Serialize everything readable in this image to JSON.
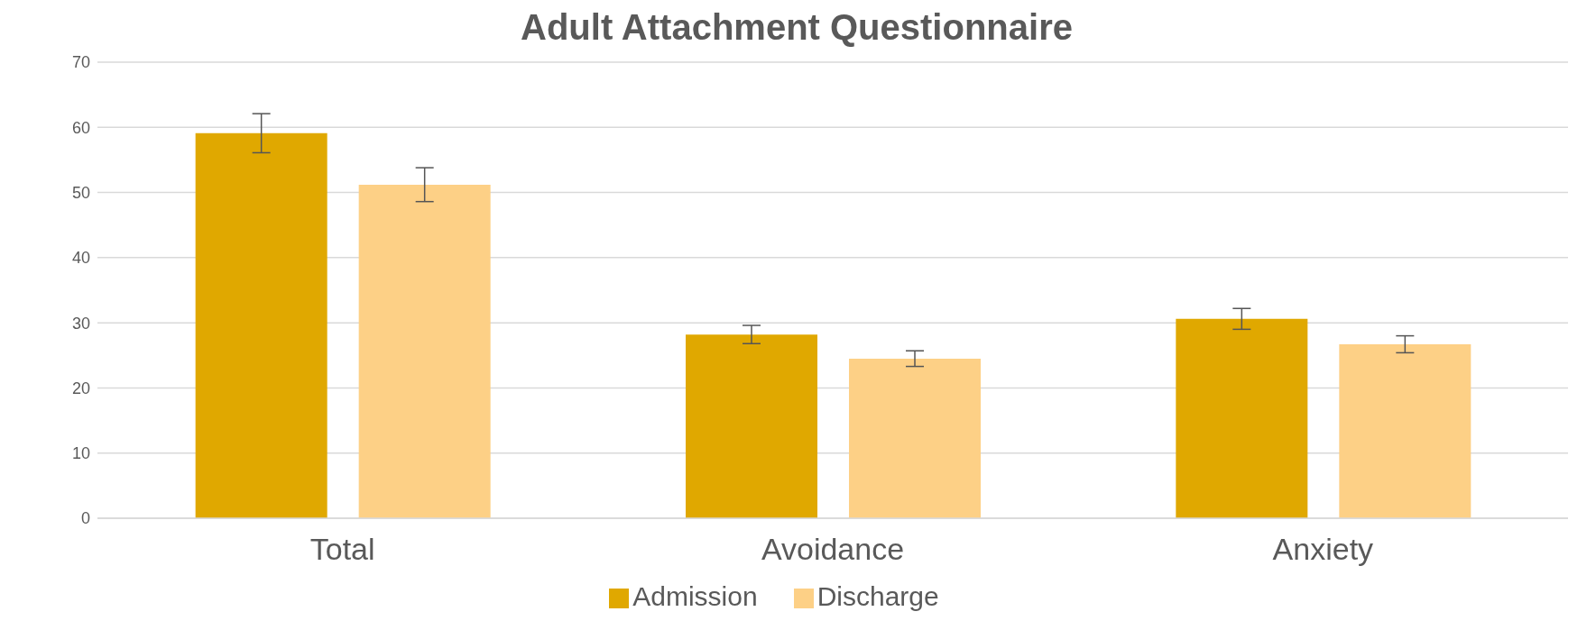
{
  "chart_data": {
    "type": "bar",
    "title": "Adult Attachment Questionnaire",
    "categories": [
      "Total",
      "Avoidance",
      "Anxiety"
    ],
    "series": [
      {
        "name": "Admission",
        "color": "#e0a800",
        "values": [
          59.1,
          28.2,
          30.6
        ],
        "errors": [
          3,
          1.4,
          1.6
        ]
      },
      {
        "name": "Discharge",
        "color": "#fdd086",
        "values": [
          51.2,
          24.5,
          26.7
        ],
        "errors": [
          2.6,
          1.2,
          1.3
        ]
      }
    ],
    "ylim": [
      0,
      70
    ],
    "yticks": [
      0,
      10,
      20,
      30,
      40,
      50,
      60,
      70
    ],
    "grid": "y",
    "legend": "bottom"
  }
}
